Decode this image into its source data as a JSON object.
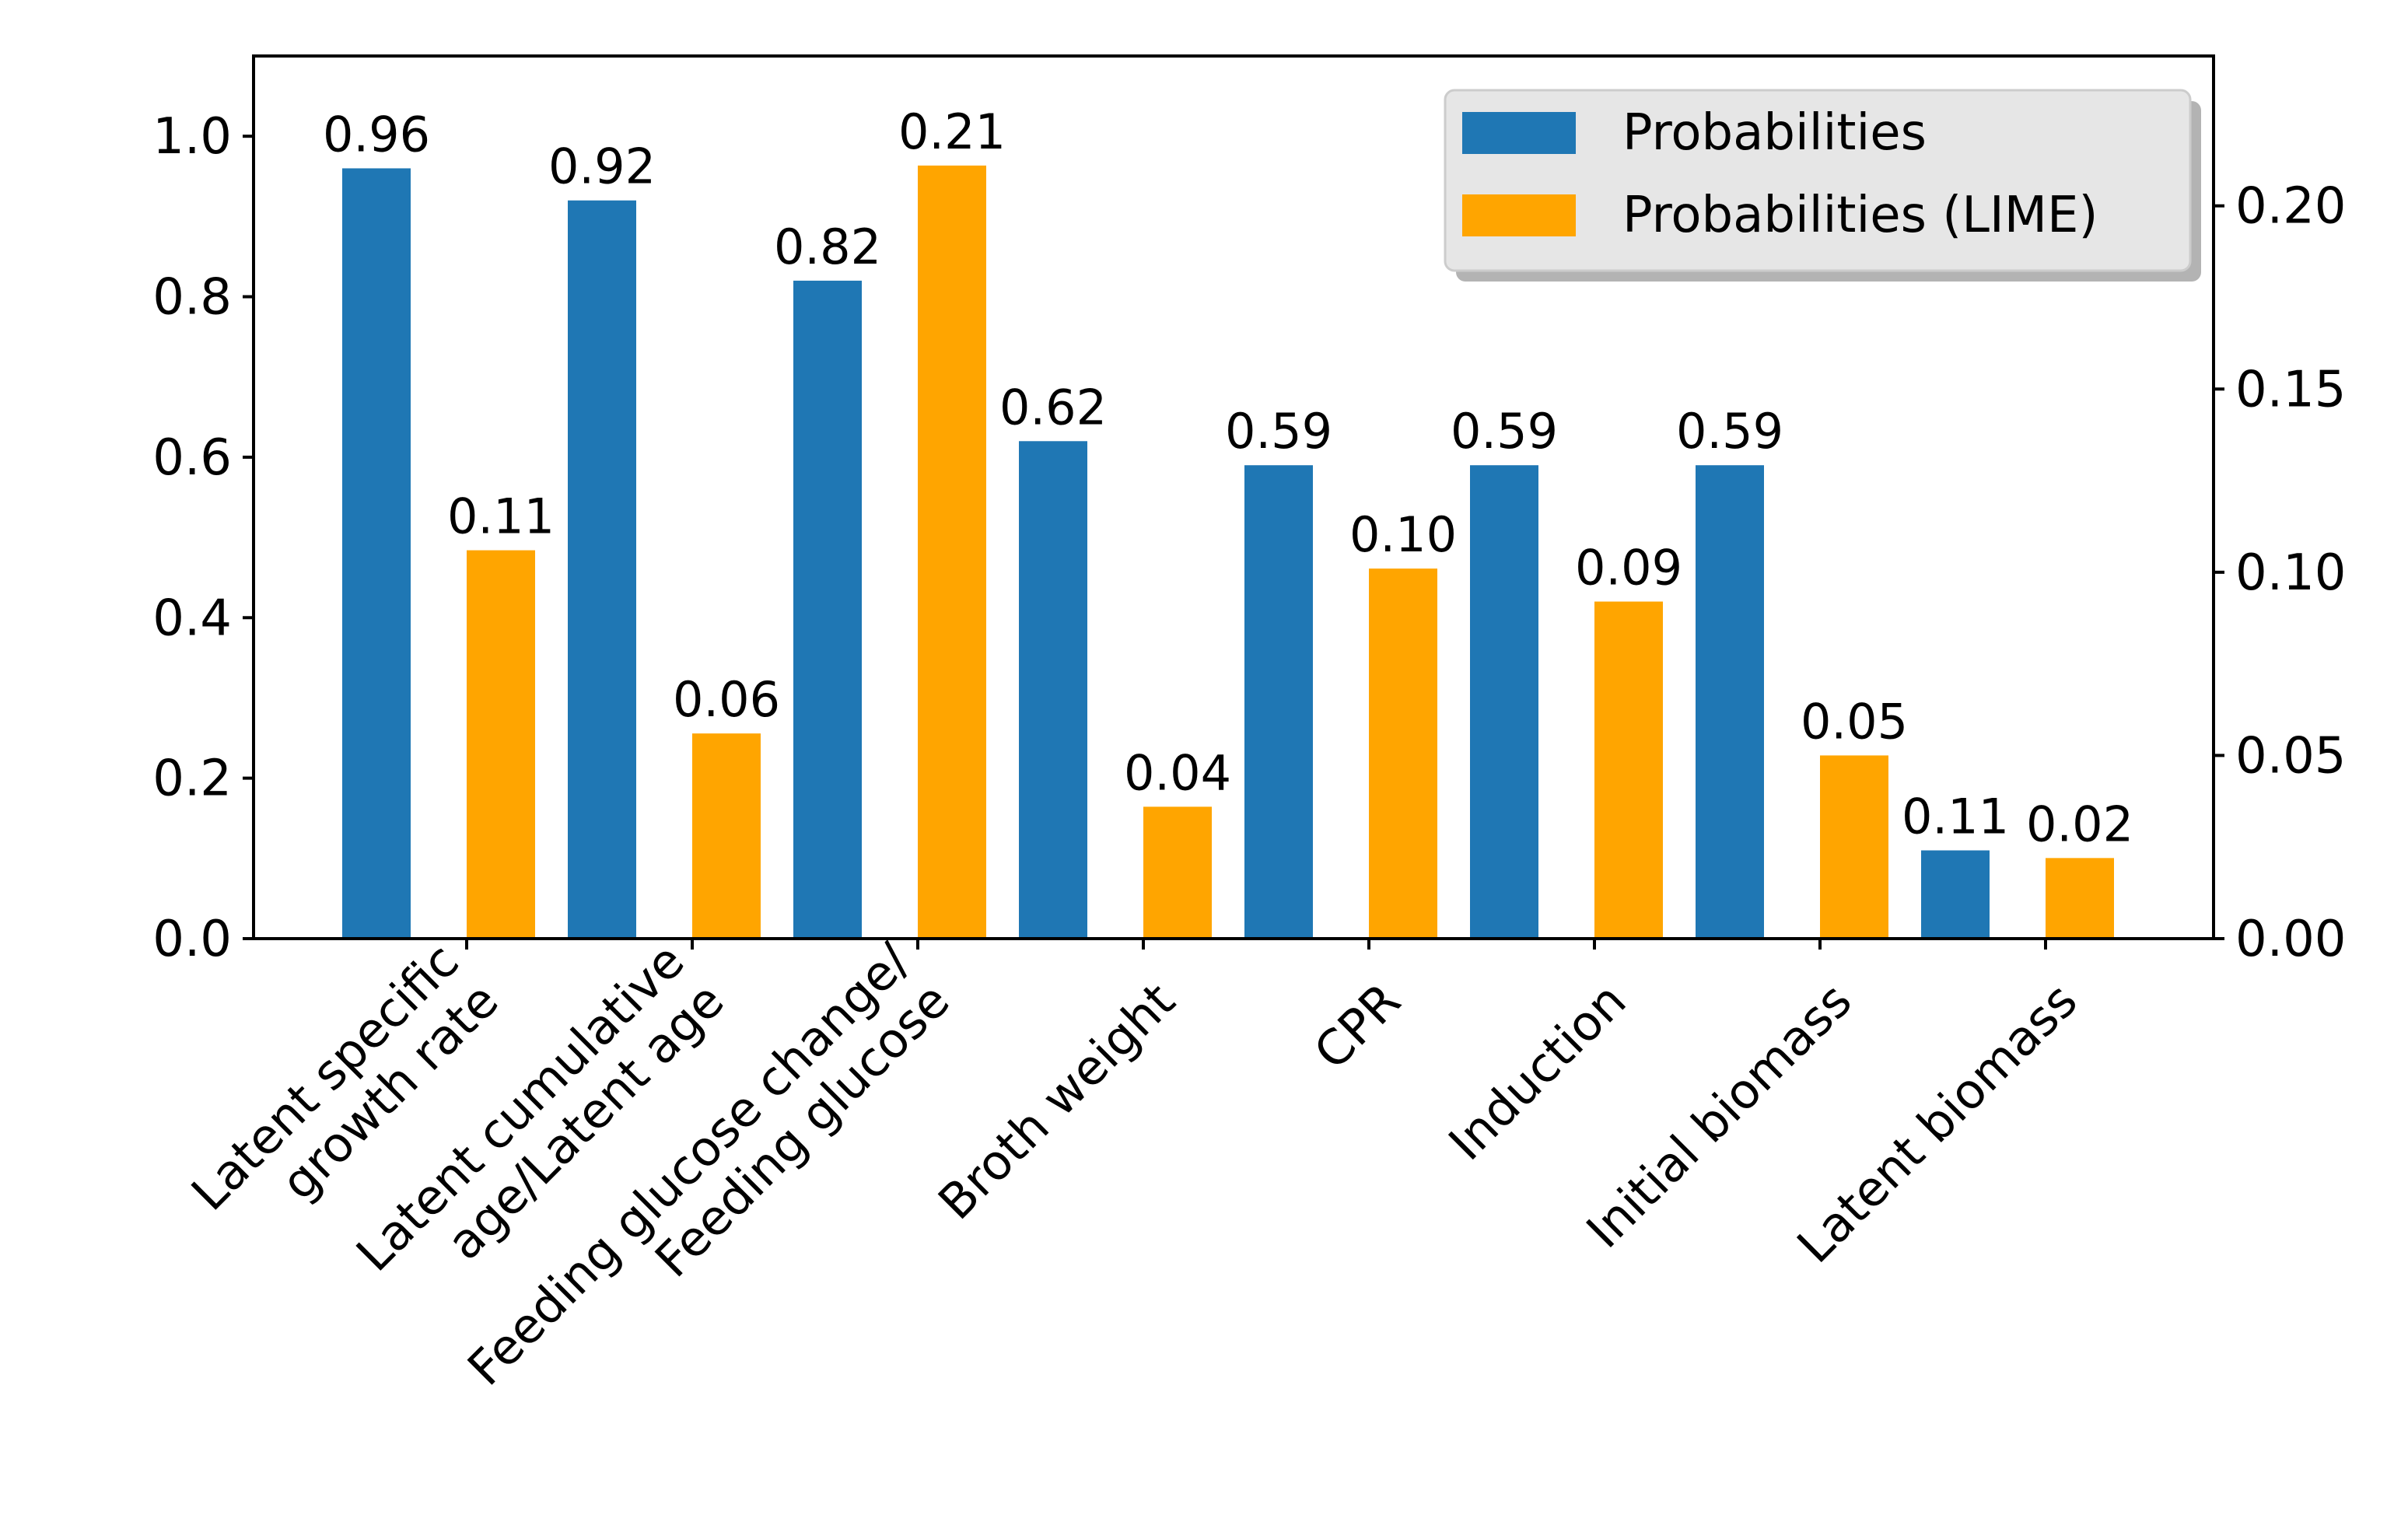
{
  "chart_data": {
    "type": "bar",
    "categories": [
      [
        "Latent specific",
        "growth rate"
      ],
      [
        "Latent cumulative",
        "age/Latent age"
      ],
      [
        "Feeding glucose change/",
        "Feeding glucose"
      ],
      [
        "Broth weight"
      ],
      [
        "CPR"
      ],
      [
        "Induction"
      ],
      [
        "Initial biomass"
      ],
      [
        "Latent biomass"
      ]
    ],
    "series": [
      {
        "name": "Probabilities",
        "axis": "left",
        "color": "#1f77b4",
        "values": [
          0.96,
          0.92,
          0.82,
          0.62,
          0.59,
          0.59,
          0.59,
          0.11
        ],
        "labels": [
          "0.96",
          "0.92",
          "0.82",
          "0.62",
          "0.59",
          "0.59",
          "0.59",
          "0.11"
        ]
      },
      {
        "name": "Probabilities (LIME)",
        "axis": "right",
        "color": "#ffa500",
        "values": [
          0.106,
          0.056,
          0.211,
          0.036,
          0.101,
          0.092,
          0.05,
          0.022
        ],
        "labels": [
          "0.11",
          "0.06",
          "0.21",
          "0.04",
          "0.10",
          "0.09",
          "0.05",
          "0.02"
        ]
      }
    ],
    "left_axis": {
      "ylim": [
        0,
        1.1
      ],
      "ticks": [
        0.0,
        0.2,
        0.4,
        0.6,
        0.8,
        1.0
      ],
      "tick_labels": [
        "0.0",
        "0.2",
        "0.4",
        "0.6",
        "0.8",
        "1.0"
      ]
    },
    "right_axis": {
      "ylim": [
        0,
        0.2409
      ],
      "ticks": [
        0.0,
        0.05,
        0.1,
        0.15,
        0.2
      ],
      "tick_labels": [
        "0.00",
        "0.05",
        "0.10",
        "0.15",
        "0.20"
      ]
    },
    "legend": {
      "position": "top-right",
      "entries": [
        "Probabilities",
        "Probabilities (LIME)"
      ]
    },
    "title": "",
    "xlabel": "",
    "ylabel": "",
    "grid": false
  }
}
